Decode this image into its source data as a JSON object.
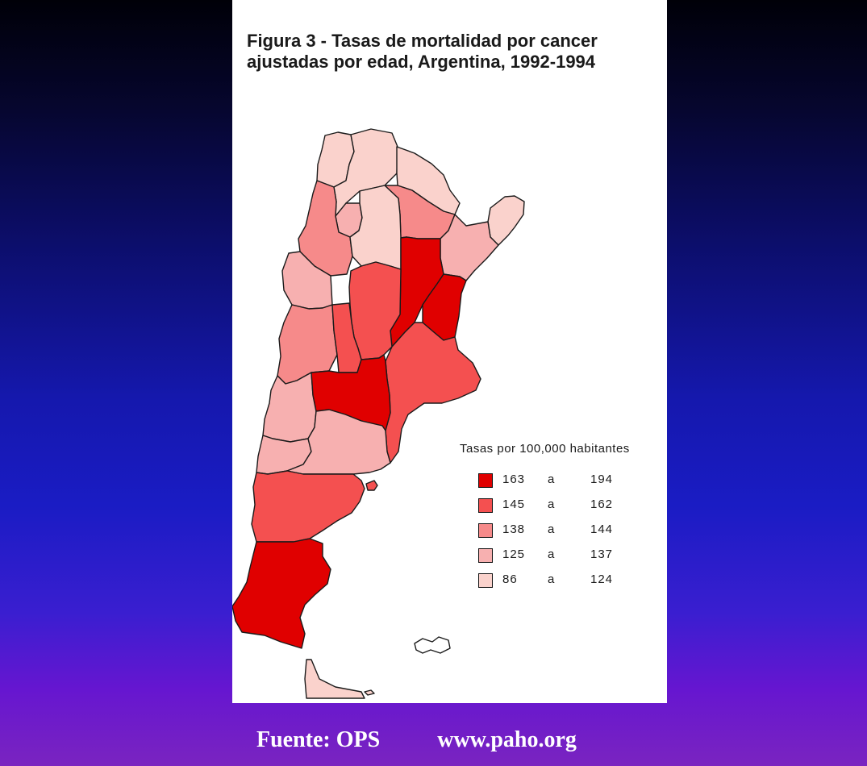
{
  "figure": {
    "title_line1": "Figura 3 - Tasas de mortalidad por cancer",
    "title_line2": "ajustadas por edad, Argentina, 1992-1994"
  },
  "colors": {
    "background_top": "#000008",
    "background_bottom": "#7a24c0",
    "class_1": "#e00000",
    "class_2": "#f45050",
    "class_3": "#f68a8a",
    "class_4": "#f7b0b0",
    "class_5": "#fad2cc"
  },
  "legend": {
    "title": "Tasas por 100,000 habitantes",
    "ranges": [
      {
        "low": "163",
        "sep": "a",
        "high": "194",
        "class": 1
      },
      {
        "low": "145",
        "sep": "a",
        "high": "162",
        "class": 2
      },
      {
        "low": "138",
        "sep": "a",
        "high": "144",
        "class": 3
      },
      {
        "low": "125",
        "sep": "a",
        "high": "137",
        "class": 4
      },
      {
        "low": "86",
        "sep": "a",
        "high": "124",
        "class": 5
      }
    ]
  },
  "regions": [
    {
      "name": "Jujuy",
      "class": 5
    },
    {
      "name": "Salta",
      "class": 5
    },
    {
      "name": "Formosa",
      "class": 5
    },
    {
      "name": "Chaco",
      "class": 3
    },
    {
      "name": "Misiones",
      "class": 5
    },
    {
      "name": "Tucumán",
      "class": 4
    },
    {
      "name": "Catamarca",
      "class": 3
    },
    {
      "name": "Santiago del Estero",
      "class": 5
    },
    {
      "name": "Corrientes",
      "class": 4
    },
    {
      "name": "La Rioja",
      "class": 4
    },
    {
      "name": "Santa Fe",
      "class": 1
    },
    {
      "name": "Entre Ríos",
      "class": 1
    },
    {
      "name": "Córdoba",
      "class": 2
    },
    {
      "name": "San Juan",
      "class": 3
    },
    {
      "name": "San Luis",
      "class": 2
    },
    {
      "name": "Buenos Aires",
      "class": 2
    },
    {
      "name": "Mendoza",
      "class": 4
    },
    {
      "name": "La Pampa",
      "class": 1
    },
    {
      "name": "Neuquén",
      "class": 4
    },
    {
      "name": "Río Negro",
      "class": 4
    },
    {
      "name": "Chubut",
      "class": 2
    },
    {
      "name": "Santa Cruz",
      "class": 1
    },
    {
      "name": "Tierra del Fuego",
      "class": 5
    },
    {
      "name": "Islas Malvinas",
      "class": 0
    }
  ],
  "footer": {
    "source": "Fuente: OPS",
    "url": "www.paho.org"
  }
}
